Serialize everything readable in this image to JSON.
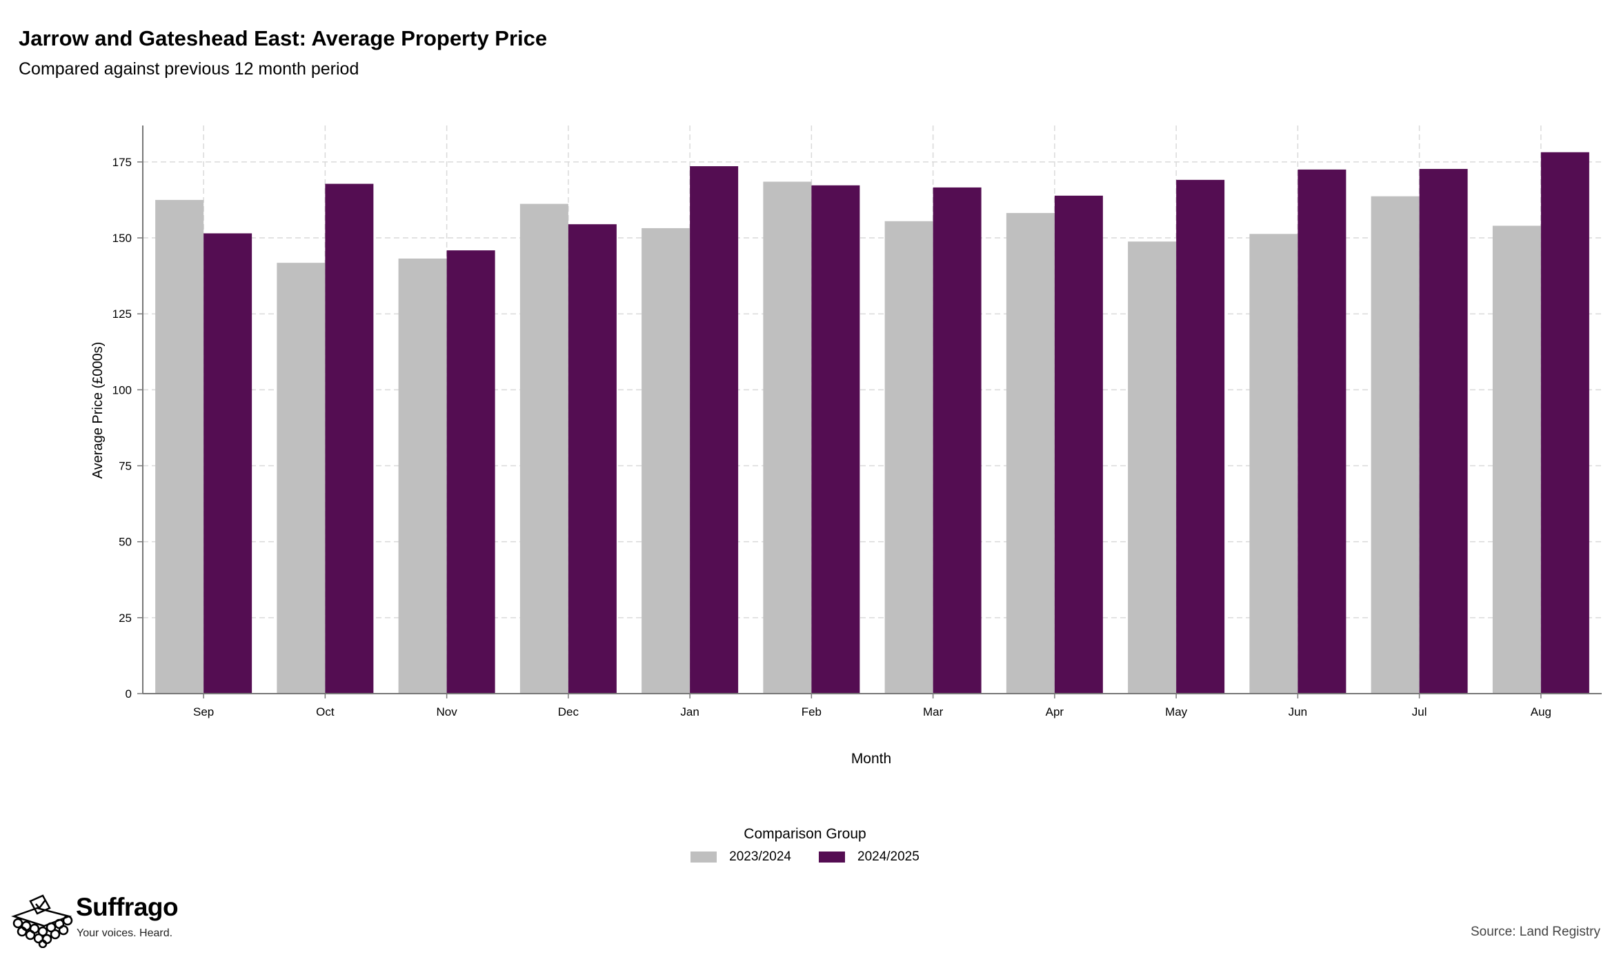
{
  "header": {
    "title": "Jarrow and Gateshead East: Average Property Price",
    "subtitle": "Compared against previous 12 month period"
  },
  "chart_data": {
    "type": "bar",
    "title": "Jarrow and Gateshead East: Average Property Price",
    "subtitle": "Compared against previous 12 month period",
    "xlabel": "Month",
    "ylabel": "Average Price (£000s)",
    "categories": [
      "Sep",
      "Oct",
      "Nov",
      "Dec",
      "Jan",
      "Feb",
      "Mar",
      "Apr",
      "May",
      "Jun",
      "Jul",
      "Aug"
    ],
    "yticks": [
      "0",
      "25",
      "50",
      "75",
      "100",
      "125",
      "150",
      "175"
    ],
    "ylim": [
      0,
      187
    ],
    "grid": true,
    "legend_title": "Comparison Group",
    "legend_position": "bottom-center",
    "series": [
      {
        "name": "2023/2024",
        "color": "#bfbfbf",
        "values": [
          162.5,
          141.8,
          143.2,
          161.2,
          153.2,
          168.5,
          155.5,
          158.2,
          148.8,
          151.3,
          163.7,
          154.0
        ]
      },
      {
        "name": "2024/2025",
        "color": "#540d52",
        "values": [
          151.5,
          167.8,
          145.9,
          154.5,
          173.6,
          167.3,
          166.6,
          163.9,
          169.1,
          172.5,
          172.7,
          178.2
        ]
      }
    ]
  },
  "legend": {
    "title": "Comparison Group",
    "items": [
      {
        "label": "2023/2024",
        "color": "#bfbfbf"
      },
      {
        "label": "2024/2025",
        "color": "#540d52"
      }
    ]
  },
  "branding": {
    "name": "Suffrago",
    "tagline": "Your voices. Heard.",
    "icon": "ballot-box-icon"
  },
  "source": "Source: Land Registry"
}
